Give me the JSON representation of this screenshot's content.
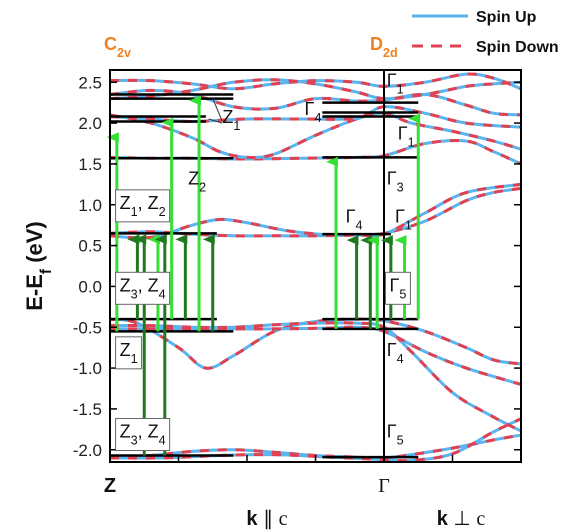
{
  "chart_data": {
    "type": "line",
    "title": "",
    "ylabel_main": "E-E",
    "ylabel_sub": "f",
    "ylabel_unit": " (eV)",
    "ylim": [
      -2.15,
      2.65
    ],
    "yticks": [
      "2.5",
      "2.0",
      "1.5",
      "1.0",
      "0.5",
      "0.0",
      "-0.5",
      "-1.0",
      "-1.5",
      "-2.0"
    ],
    "ytick_values": [
      2.5,
      2.0,
      1.5,
      1.0,
      0.5,
      0.0,
      -0.5,
      -1.0,
      -1.5,
      -2.0
    ],
    "x_points": [
      "Z",
      "Γ"
    ],
    "x_directions": [
      {
        "main": "k",
        "sym": " ∥ ",
        "c": "c"
      },
      {
        "main": "k",
        "sym": " ⊥ ",
        "c": "c"
      }
    ],
    "symmetry_groups": [
      {
        "main": "C",
        "sub": "2v"
      },
      {
        "main": "D",
        "sub": "2d"
      }
    ],
    "legend": [
      {
        "label": "Spin Up",
        "color": "#5ab4ef",
        "style": "solid"
      },
      {
        "label": "Spin Down",
        "color": "#e04050",
        "style": "dashed"
      }
    ],
    "colors": {
      "spin_up": "#5ab4ef",
      "spin_down": "#e04050",
      "arrow_light": "#33e033",
      "arrow_dark": "#1f7a1f",
      "level": "#000000",
      "sym_label": "#f08020"
    },
    "x_range": [
      0,
      3
    ],
    "bands": [
      [
        [
          0,
          -2.09
        ],
        [
          0.3,
          -2.07
        ],
        [
          0.6,
          -2.02
        ],
        [
          0.9,
          -2.0
        ],
        [
          1.2,
          -2.03
        ],
        [
          1.5,
          -2.07
        ],
        [
          1.8,
          -2.09
        ],
        [
          2.0,
          -2.1
        ],
        [
          2.2,
          -2.06
        ],
        [
          2.5,
          -1.98
        ],
        [
          2.8,
          -1.88
        ],
        [
          3.0,
          -1.82
        ]
      ],
      [
        [
          0,
          -2.1
        ],
        [
          0.4,
          -2.1
        ],
        [
          0.8,
          -2.07
        ],
        [
          1.2,
          -2.06
        ],
        [
          1.6,
          -2.09
        ],
        [
          2.0,
          -2.12
        ],
        [
          2.2,
          -2.13
        ],
        [
          2.5,
          -2.05
        ],
        [
          2.8,
          -1.78
        ],
        [
          3.0,
          -1.62
        ]
      ],
      [
        [
          0,
          -0.4
        ],
        [
          0.2,
          -0.45
        ],
        [
          0.5,
          -0.75
        ],
        [
          0.7,
          -1.0
        ],
        [
          0.9,
          -0.85
        ],
        [
          1.2,
          -0.55
        ],
        [
          1.5,
          -0.43
        ],
        [
          1.8,
          -0.4
        ],
        [
          2.0,
          -0.42
        ],
        [
          2.3,
          -0.55
        ],
        [
          2.6,
          -0.75
        ],
        [
          2.8,
          -0.9
        ],
        [
          3.0,
          -0.95
        ]
      ],
      [
        [
          0,
          -0.48
        ],
        [
          0.3,
          -0.48
        ],
        [
          0.6,
          -0.5
        ],
        [
          0.9,
          -0.5
        ],
        [
          1.2,
          -0.47
        ],
        [
          1.5,
          -0.45
        ],
        [
          1.8,
          -0.45
        ],
        [
          2.0,
          -0.5
        ],
        [
          2.2,
          -0.8
        ],
        [
          2.5,
          -1.3
        ],
        [
          2.8,
          -1.6
        ],
        [
          3.0,
          -1.77
        ]
      ],
      [
        [
          0,
          -0.52
        ],
        [
          0.4,
          -0.52
        ],
        [
          0.8,
          -0.52
        ],
        [
          1.2,
          -0.52
        ],
        [
          1.6,
          -0.51
        ],
        [
          1.8,
          -0.5
        ],
        [
          2.0,
          -0.55
        ],
        [
          2.3,
          -0.8
        ],
        [
          2.6,
          -1.0
        ],
        [
          3.0,
          -1.2
        ]
      ],
      [
        [
          0,
          0.62
        ],
        [
          0.3,
          0.6
        ],
        [
          0.6,
          0.75
        ],
        [
          0.8,
          0.82
        ],
        [
          1.0,
          0.78
        ],
        [
          1.3,
          0.68
        ],
        [
          1.6,
          0.63
        ],
        [
          1.8,
          0.63
        ],
        [
          2.0,
          0.65
        ],
        [
          2.3,
          0.8
        ],
        [
          2.6,
          1.05
        ],
        [
          2.8,
          1.15
        ],
        [
          3.0,
          1.2
        ]
      ],
      [
        [
          0,
          0.65
        ],
        [
          0.3,
          0.67
        ],
        [
          0.6,
          0.64
        ],
        [
          0.9,
          0.62
        ],
        [
          1.2,
          0.62
        ],
        [
          1.5,
          0.62
        ],
        [
          1.8,
          0.63
        ],
        [
          2.0,
          0.64
        ],
        [
          2.3,
          0.9
        ],
        [
          2.6,
          1.15
        ],
        [
          3.0,
          1.25
        ]
      ],
      [
        [
          0,
          1.58
        ],
        [
          0.3,
          1.57
        ],
        [
          0.6,
          1.57
        ],
        [
          1.0,
          1.56
        ],
        [
          1.4,
          1.57
        ],
        [
          1.8,
          1.58
        ],
        [
          2.0,
          1.6
        ],
        [
          2.3,
          1.75
        ],
        [
          2.6,
          1.78
        ],
        [
          2.8,
          1.65
        ],
        [
          3.0,
          1.5
        ]
      ],
      [
        [
          0,
          2.1
        ],
        [
          0.3,
          2.0
        ],
        [
          0.6,
          1.82
        ],
        [
          0.8,
          1.65
        ],
        [
          1.0,
          1.58
        ],
        [
          1.2,
          1.62
        ],
        [
          1.5,
          1.85
        ],
        [
          1.8,
          2.05
        ],
        [
          2.0,
          2.12
        ],
        [
          2.2,
          2.0
        ],
        [
          2.5,
          1.9
        ],
        [
          2.8,
          1.78
        ],
        [
          3.0,
          1.68
        ]
      ],
      [
        [
          0,
          2.08
        ],
        [
          0.3,
          2.05
        ],
        [
          0.6,
          2.02
        ],
        [
          1.0,
          2.05
        ],
        [
          1.4,
          2.05
        ],
        [
          1.8,
          2.06
        ],
        [
          2.0,
          2.2
        ],
        [
          2.3,
          2.12
        ],
        [
          2.6,
          2.0
        ],
        [
          3.0,
          1.95
        ]
      ],
      [
        [
          0,
          2.35
        ],
        [
          0.3,
          2.4
        ],
        [
          0.6,
          2.35
        ],
        [
          0.9,
          2.2
        ],
        [
          1.2,
          2.18
        ],
        [
          1.5,
          2.3
        ],
        [
          1.8,
          2.27
        ],
        [
          2.0,
          2.28
        ],
        [
          2.3,
          2.35
        ],
        [
          2.6,
          2.22
        ],
        [
          2.8,
          2.12
        ],
        [
          3.0,
          2.1
        ]
      ],
      [
        [
          0,
          2.52
        ],
        [
          0.3,
          2.52
        ],
        [
          0.6,
          2.48
        ],
        [
          0.9,
          2.42
        ],
        [
          1.2,
          2.48
        ],
        [
          1.5,
          2.52
        ],
        [
          1.8,
          2.5
        ],
        [
          2.0,
          2.45
        ],
        [
          2.3,
          2.5
        ],
        [
          2.6,
          2.6
        ],
        [
          2.8,
          2.55
        ],
        [
          3.0,
          2.42
        ]
      ],
      [
        [
          0,
          2.3
        ],
        [
          0.3,
          2.33
        ],
        [
          0.6,
          2.4
        ],
        [
          0.9,
          2.5
        ],
        [
          1.2,
          2.53
        ],
        [
          1.5,
          2.48
        ],
        [
          1.8,
          2.38
        ],
        [
          2.0,
          2.3
        ],
        [
          2.3,
          2.35
        ],
        [
          2.6,
          2.45
        ],
        [
          2.8,
          2.48
        ],
        [
          3.0,
          2.5
        ]
      ]
    ],
    "levels": [
      {
        "x0": 0.0,
        "x1": 0.9,
        "y": 2.35
      },
      {
        "x0": 0.0,
        "x1": 0.9,
        "y": 2.3
      },
      {
        "x0": 0.0,
        "x1": 0.7,
        "y": 2.08
      },
      {
        "x0": 0.0,
        "x1": 0.7,
        "y": 2.02
      },
      {
        "x0": 0.0,
        "x1": 0.9,
        "y": 1.57
      },
      {
        "x0": 0.0,
        "x1": 0.78,
        "y": 0.65
      },
      {
        "x0": 0.0,
        "x1": 0.78,
        "y": -0.4
      },
      {
        "x0": 0.0,
        "x1": 0.9,
        "y": -0.55
      },
      {
        "x0": 0.0,
        "x1": 0.9,
        "y": -2.07
      },
      {
        "x0": 1.55,
        "x1": 2.25,
        "y": 2.25
      },
      {
        "x0": 1.55,
        "x1": 2.25,
        "y": 2.13
      },
      {
        "x0": 1.55,
        "x1": 2.25,
        "y": 2.08
      },
      {
        "x0": 1.55,
        "x1": 2.25,
        "y": 1.58
      },
      {
        "x0": 1.55,
        "x1": 2.05,
        "y": 0.64
      },
      {
        "x0": 1.55,
        "x1": 2.25,
        "y": -0.4
      },
      {
        "x0": 1.55,
        "x1": 2.25,
        "y": -0.52
      },
      {
        "x0": 1.55,
        "x1": 2.25,
        "y": -2.09
      }
    ],
    "arrows": [
      {
        "x": 0.05,
        "y0": -0.55,
        "y1": 1.9,
        "color": "light"
      },
      {
        "x": 0.2,
        "y0": -0.4,
        "y1": 0.65,
        "color": "dark"
      },
      {
        "x": 0.25,
        "y0": -2.07,
        "y1": 0.65,
        "color": "dark"
      },
      {
        "x": 0.35,
        "y0": -0.55,
        "y1": 0.65,
        "color": "light"
      },
      {
        "x": 0.4,
        "y0": -2.07,
        "y1": 0.65,
        "color": "dark"
      },
      {
        "x": 0.45,
        "y0": -0.4,
        "y1": 2.08,
        "color": "light"
      },
      {
        "x": 0.55,
        "y0": -0.4,
        "y1": 0.65,
        "color": "dark"
      },
      {
        "x": 0.65,
        "y0": -0.55,
        "y1": 2.35,
        "color": "light"
      },
      {
        "x": 0.75,
        "y0": -0.55,
        "y1": 0.65,
        "color": "dark"
      },
      {
        "x": 1.65,
        "y0": -0.52,
        "y1": 1.6,
        "color": "light"
      },
      {
        "x": 1.8,
        "y0": -0.4,
        "y1": 0.64,
        "color": "dark"
      },
      {
        "x": 1.9,
        "y0": -0.52,
        "y1": 0.64,
        "color": "dark"
      },
      {
        "x": 1.95,
        "y0": -0.52,
        "y1": 0.64,
        "color": "light"
      },
      {
        "x": 2.05,
        "y0": -0.4,
        "y1": 0.64,
        "color": "dark"
      },
      {
        "x": 2.15,
        "y0": -0.4,
        "y1": 0.64,
        "color": "light"
      },
      {
        "x": 2.25,
        "y0": -0.4,
        "y1": 2.13,
        "color": "light"
      }
    ],
    "annotations": [
      {
        "text": "Z",
        "sub": "1",
        "x": 0.82,
        "y": 2.0,
        "box": false,
        "align": "start"
      },
      {
        "text": "Z",
        "sub": "2",
        "x": 0.57,
        "y": 1.25,
        "box": false,
        "align": "start"
      },
      {
        "text": "Z",
        "sub": "1",
        "text2": ", Z",
        "sub2": "2",
        "x": 0.07,
        "y": 0.95,
        "box": true,
        "align": "start"
      },
      {
        "text": "Z",
        "sub": "3",
        "text2": ", Z",
        "sub2": "4",
        "x": 0.07,
        "y": -0.06,
        "box": true,
        "align": "start"
      },
      {
        "text": "Z",
        "sub": "1",
        "x": 0.07,
        "y": -0.85,
        "box": true,
        "align": "start"
      },
      {
        "text": "Z",
        "sub": "3",
        "text2": ", Z",
        "sub2": "4",
        "x": 0.07,
        "y": -1.85,
        "box": true,
        "align": "start"
      },
      {
        "text": "Γ",
        "sub": "1",
        "x": 2.02,
        "y": 2.45,
        "box": false,
        "align": "start"
      },
      {
        "text": "Γ",
        "sub": "4",
        "x": 1.42,
        "y": 2.1,
        "box": false,
        "align": "start"
      },
      {
        "text": "Γ",
        "sub": "1",
        "x": 2.1,
        "y": 1.8,
        "box": false,
        "align": "start"
      },
      {
        "text": "Γ",
        "sub": "3",
        "x": 2.02,
        "y": 1.25,
        "box": false,
        "align": "start"
      },
      {
        "text": "Γ",
        "sub": "4",
        "x": 1.72,
        "y": 0.78,
        "box": false,
        "align": "start"
      },
      {
        "text": "Γ",
        "sub": "1",
        "x": 2.08,
        "y": 0.78,
        "box": false,
        "align": "start"
      },
      {
        "text": "Γ",
        "sub": "5",
        "x": 2.04,
        "y": -0.06,
        "box": true,
        "align": "start"
      },
      {
        "text": "Γ",
        "sub": "4",
        "x": 2.02,
        "y": -0.85,
        "box": false,
        "align": "start"
      },
      {
        "text": "Γ",
        "sub": "5",
        "x": 2.02,
        "y": -1.85,
        "box": false,
        "align": "start"
      }
    ]
  }
}
